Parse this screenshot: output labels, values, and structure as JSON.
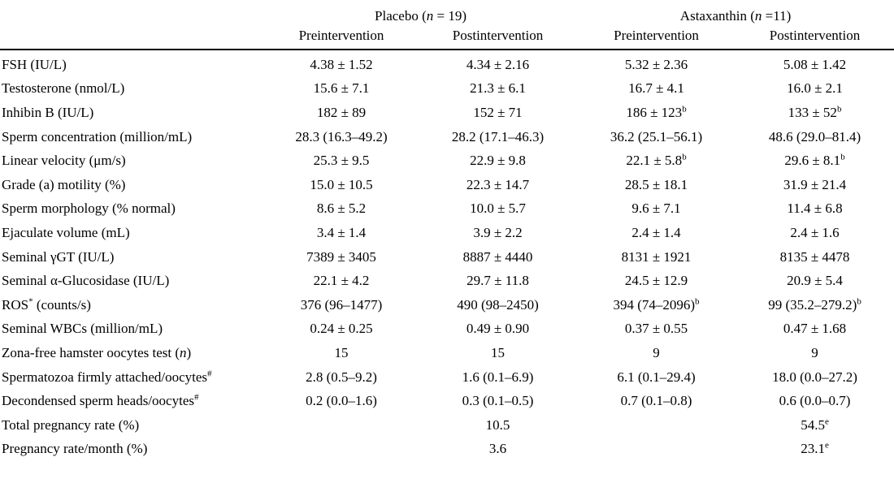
{
  "page": {
    "background_color": "#ffffff",
    "text_color": "#000000"
  },
  "table": {
    "note": "markers: ^x^ = superscript, ~x~ = italic",
    "groups": [
      {
        "label": "Placebo (~n~ = 19)",
        "columns": [
          "Preintervention",
          "Postintervention"
        ]
      },
      {
        "label": "Astaxanthin (~n~ =11)",
        "columns": [
          "Preintervention",
          "Postintervention"
        ]
      }
    ],
    "rows": [
      {
        "label": "FSH (IU/L)",
        "values": [
          "4.38 ± 1.52",
          "4.34 ± 2.16",
          "5.32 ± 2.36",
          "5.08 ± 1.42"
        ]
      },
      {
        "label": "Testosterone (nmol/L)",
        "values": [
          "15.6 ± 7.1",
          "21.3 ± 6.1",
          "16.7 ± 4.1",
          "16.0 ± 2.1"
        ]
      },
      {
        "label": "Inhibin B (IU/L)",
        "values": [
          "182 ± 89",
          "152 ± 71",
          "186 ± 123^b^",
          "133 ± 52^b^"
        ]
      },
      {
        "label": "Sperm concentration (million/mL)",
        "values": [
          "28.3 (16.3–49.2)",
          "28.2 (17.1–46.3)",
          "36.2 (25.1–56.1)",
          "48.6 (29.0–81.4)"
        ]
      },
      {
        "label": "Linear velocity (μm/s)",
        "values": [
          "25.3 ± 9.5",
          "22.9 ± 9.8",
          "22.1 ± 5.8^b^",
          "29.6 ± 8.1^b^"
        ]
      },
      {
        "label": "Grade (a) motility (%)",
        "values": [
          "15.0 ± 10.5",
          "22.3 ± 14.7",
          "28.5 ± 18.1",
          "31.9 ± 21.4"
        ]
      },
      {
        "label": "Sperm morphology (% normal)",
        "values": [
          "8.6 ± 5.2",
          "10.0 ± 5.7",
          "9.6 ± 7.1",
          "11.4 ± 6.8"
        ]
      },
      {
        "label": "Ejaculate volume (mL)",
        "values": [
          "3.4 ± 1.4",
          "3.9 ± 2.2",
          "2.4 ± 1.4",
          "2.4 ± 1.6"
        ]
      },
      {
        "label": "Seminal γGT (IU/L)",
        "values": [
          "7389 ± 3405",
          "8887 ± 4440",
          "8131 ± 1921",
          "8135 ± 4478"
        ]
      },
      {
        "label": "Seminal α-Glucosidase (IU/L)",
        "values": [
          "22.1 ± 4.2",
          "29.7 ± 11.8",
          "24.5 ± 12.9",
          "20.9 ± 5.4"
        ]
      },
      {
        "label": "ROS^*^ (counts/s)",
        "values": [
          "376 (96–1477)",
          "490 (98–2450)",
          "394 (74–2096)^b^",
          "99 (35.2–279.2)^b^"
        ]
      },
      {
        "label": "Seminal WBCs (million/mL)",
        "values": [
          "0.24 ± 0.25",
          "0.49 ± 0.90",
          "0.37 ± 0.55",
          "0.47 ± 1.68"
        ]
      },
      {
        "label": "Zona-free hamster oocytes test (~n~)",
        "values": [
          "15",
          "15",
          "9",
          "9"
        ]
      },
      {
        "label": "Spermatozoa firmly attached/oocytes^#^",
        "values": [
          "2.8 (0.5–9.2)",
          "1.6 (0.1–6.9)",
          "6.1 (0.1–29.4)",
          "18.0 (0.0–27.2)"
        ]
      },
      {
        "label": "Decondensed sperm heads/oocytes^#^",
        "values": [
          "0.2 (0.0–1.6)",
          "0.3 (0.1–0.5)",
          "0.7 (0.1–0.8)",
          "0.6 (0.0–0.7)"
        ]
      },
      {
        "label": "Total pregnancy rate (%)",
        "values": [
          "",
          "10.5",
          "",
          "54.5^e^"
        ]
      },
      {
        "label": "Pregnancy rate/month (%)",
        "values": [
          "",
          "3.6",
          "",
          "23.1^e^"
        ]
      }
    ]
  }
}
